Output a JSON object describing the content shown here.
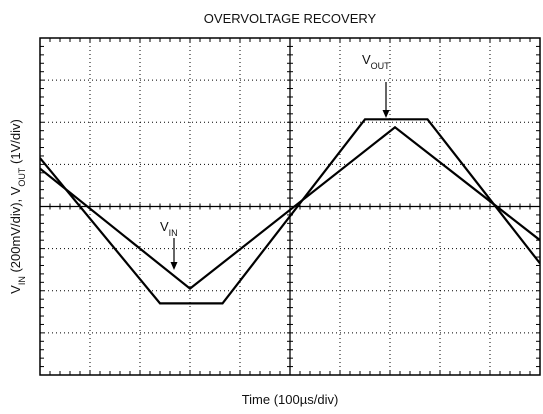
{
  "chart_data": {
    "type": "line",
    "title": "OVERVOLTAGE RECOVERY",
    "xlabel": "Time (100µs/div)",
    "ylabel": [
      {
        "text": "V",
        "sub": "IN"
      },
      {
        "text": " (200mV/div), V",
        "sub": "OUT"
      },
      {
        "text": " (1V/div)"
      }
    ],
    "xlim": [
      0,
      10
    ],
    "ylim": [
      -4,
      4
    ],
    "xticks": [
      0,
      1,
      2,
      3,
      4,
      5,
      6,
      7,
      8,
      9,
      10
    ],
    "yticks": [
      -4,
      -3,
      -2,
      -1,
      0,
      1,
      2,
      3,
      4
    ],
    "grid": true,
    "series": [
      {
        "name": {
          "text": "V",
          "sub": "OUT"
        },
        "color": "#000000",
        "x": [
          0,
          2.4,
          3.65,
          6.5,
          7.75,
          10
        ],
        "values": [
          1.15,
          -2.3,
          -2.3,
          2.07,
          2.07,
          -1.35
        ]
      },
      {
        "name": {
          "text": "V",
          "sub": "IN"
        },
        "color": "#000000",
        "x": [
          0,
          3.0,
          7.1,
          10
        ],
        "values": [
          0.9,
          -1.95,
          1.88,
          -0.8
        ]
      }
    ]
  }
}
